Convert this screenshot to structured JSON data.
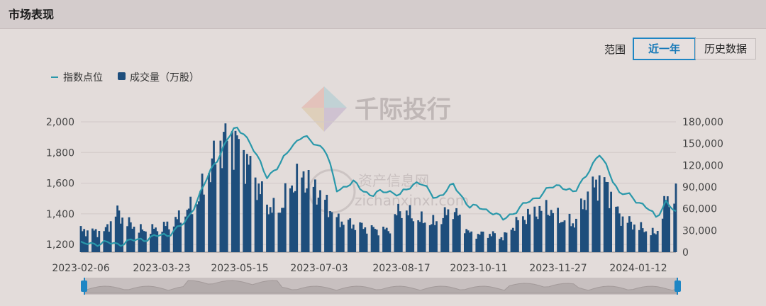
{
  "header": {
    "title": "市场表现"
  },
  "range": {
    "label": "范围",
    "options": [
      "近一年",
      "历史数据"
    ],
    "active": "近一年"
  },
  "watermarks": {
    "brand": "千际投行",
    "site_cn": "资产信息网",
    "site_url": "zichanxinxi.com"
  },
  "colors": {
    "line": "#2a98aa",
    "bar": "#1e4e7c",
    "background": "#e3dcda",
    "active_btn": "#1e86c4"
  },
  "chart_data": {
    "type": "bar+line",
    "legend": [
      {
        "name": "指数点位",
        "type": "line",
        "color": "#2a98aa"
      },
      {
        "name": "成交量（万股）",
        "type": "bar",
        "color": "#1e4e7c"
      }
    ],
    "x_ticks": [
      "2023-02-06",
      "2023-03-23",
      "2023-05-15",
      "2023-07-03",
      "2023-08-17",
      "2023-10-11",
      "2023-11-27",
      "2024-01-12"
    ],
    "y_left": {
      "ticks": [
        "1,200",
        "1,400",
        "1,600",
        "1,800",
        "2,000"
      ],
      "min": 1150,
      "max": 2000
    },
    "y_right": {
      "ticks": [
        "0",
        "30,000",
        "60,000",
        "90,000",
        "120,000",
        "150,000",
        "180,000"
      ],
      "min": 0,
      "max": 180000
    },
    "index_points": [
      [
        "2023-02-06",
        1200
      ],
      [
        "2023-02-15",
        1210
      ],
      [
        "2023-02-28",
        1205
      ],
      [
        "2023-03-10",
        1225
      ],
      [
        "2023-03-20",
        1245
      ],
      [
        "2023-03-30",
        1265
      ],
      [
        "2023-04-10",
        1340
      ],
      [
        "2023-04-20",
        1560
      ],
      [
        "2023-04-27",
        1720
      ],
      [
        "2023-05-05",
        1880
      ],
      [
        "2023-05-10",
        1960
      ],
      [
        "2023-05-15",
        1935
      ],
      [
        "2023-05-22",
        1790
      ],
      [
        "2023-05-29",
        1650
      ],
      [
        "2023-06-05",
        1700
      ],
      [
        "2023-06-12",
        1840
      ],
      [
        "2023-06-19",
        1900
      ],
      [
        "2023-06-26",
        1870
      ],
      [
        "2023-07-03",
        1820
      ],
      [
        "2023-07-10",
        1560
      ],
      [
        "2023-07-20",
        1600
      ],
      [
        "2023-07-31",
        1520
      ],
      [
        "2023-08-10",
        1555
      ],
      [
        "2023-08-17",
        1520
      ],
      [
        "2023-08-28",
        1620
      ],
      [
        "2023-09-07",
        1500
      ],
      [
        "2023-09-18",
        1585
      ],
      [
        "2023-09-28",
        1450
      ],
      [
        "2023-10-11",
        1420
      ],
      [
        "2023-10-18",
        1360
      ],
      [
        "2023-10-28",
        1440
      ],
      [
        "2023-11-06",
        1500
      ],
      [
        "2023-11-14",
        1560
      ],
      [
        "2023-11-22",
        1590
      ],
      [
        "2023-11-30",
        1530
      ],
      [
        "2023-12-08",
        1680
      ],
      [
        "2023-12-15",
        1780
      ],
      [
        "2023-12-20",
        1700
      ],
      [
        "2023-12-27",
        1530
      ],
      [
        "2024-01-03",
        1520
      ],
      [
        "2024-01-12",
        1440
      ],
      [
        "2024-01-18",
        1380
      ],
      [
        "2024-01-24",
        1480
      ],
      [
        "2024-01-30",
        1400
      ]
    ],
    "volume_points": [
      [
        "2023-02-06",
        30000
      ],
      [
        "2023-02-20",
        28000
      ],
      [
        "2023-02-28",
        55000
      ],
      [
        "2023-03-05",
        42000
      ],
      [
        "2023-03-15",
        30000
      ],
      [
        "2023-03-23",
        32000
      ],
      [
        "2023-04-01",
        38000
      ],
      [
        "2023-04-10",
        55000
      ],
      [
        "2023-04-17",
        70000
      ],
      [
        "2023-04-24",
        110000
      ],
      [
        "2023-05-01",
        150000
      ],
      [
        "2023-05-08",
        160000
      ],
      [
        "2023-05-15",
        135000
      ],
      [
        "2023-05-22",
        100000
      ],
      [
        "2023-05-29",
        65000
      ],
      [
        "2023-06-05",
        55000
      ],
      [
        "2023-06-12",
        90000
      ],
      [
        "2023-06-19",
        105000
      ],
      [
        "2023-06-26",
        90000
      ],
      [
        "2023-07-03",
        70000
      ],
      [
        "2023-07-10",
        45000
      ],
      [
        "2023-07-20",
        38000
      ],
      [
        "2023-07-31",
        32000
      ],
      [
        "2023-08-10",
        30000
      ],
      [
        "2023-08-17",
        60000
      ],
      [
        "2023-08-28",
        45000
      ],
      [
        "2023-09-07",
        40000
      ],
      [
        "2023-09-18",
        60000
      ],
      [
        "2023-09-28",
        25000
      ],
      [
        "2023-10-11",
        25000
      ],
      [
        "2023-10-18",
        20000
      ],
      [
        "2023-10-28",
        45000
      ],
      [
        "2023-11-06",
        55000
      ],
      [
        "2023-11-14",
        60000
      ],
      [
        "2023-11-22",
        45000
      ],
      [
        "2023-11-30",
        40000
      ],
      [
        "2023-12-08",
        80000
      ],
      [
        "2023-12-15",
        100000
      ],
      [
        "2023-12-20",
        90000
      ],
      [
        "2023-12-27",
        50000
      ],
      [
        "2024-01-03",
        40000
      ],
      [
        "2024-01-12",
        30000
      ],
      [
        "2024-01-18",
        25000
      ],
      [
        "2024-01-24",
        70000
      ],
      [
        "2024-01-30",
        80000
      ]
    ]
  }
}
